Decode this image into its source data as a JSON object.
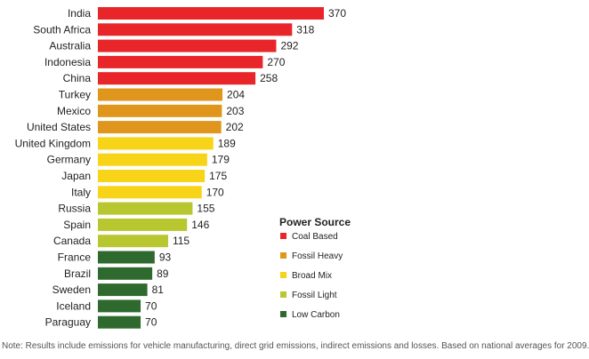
{
  "chart_data": {
    "type": "bar",
    "orientation": "horizontal",
    "categories": [
      "India",
      "South Africa",
      "Australia",
      "Indonesia",
      "China",
      "Turkey",
      "Mexico",
      "United States",
      "United Kingdom",
      "Germany",
      "Japan",
      "Italy",
      "Russia",
      "Spain",
      "Canada",
      "France",
      "Brazil",
      "Sweden",
      "Iceland",
      "Paraguay"
    ],
    "values": [
      370,
      318,
      292,
      270,
      258,
      204,
      203,
      202,
      189,
      179,
      175,
      170,
      155,
      146,
      115,
      93,
      89,
      81,
      70,
      70
    ],
    "groups": [
      "Coal Based",
      "Coal Based",
      "Coal Based",
      "Coal Based",
      "Coal Based",
      "Fossil Heavy",
      "Fossil Heavy",
      "Fossil Heavy",
      "Broad Mix",
      "Broad Mix",
      "Broad Mix",
      "Broad Mix",
      "Fossil Light",
      "Fossil Light",
      "Fossil Light",
      "Low Carbon",
      "Low Carbon",
      "Low Carbon",
      "Low Carbon",
      "Low Carbon"
    ],
    "legend": {
      "title": "Power Source",
      "position": "right",
      "entries": [
        {
          "label": "Coal Based",
          "color": "#e8262a"
        },
        {
          "label": "Fossil Heavy",
          "color": "#e0961c"
        },
        {
          "label": "Broad Mix",
          "color": "#f7d417"
        },
        {
          "label": "Fossil Light",
          "color": "#b8c630"
        },
        {
          "label": "Low Carbon",
          "color": "#2e6a2e"
        }
      ]
    },
    "grid": false
  },
  "note": "Note:  Results include emissions for vehicle manufacturing, direct grid emissions, indirect emissions and losses. Based on national averages for 2009."
}
